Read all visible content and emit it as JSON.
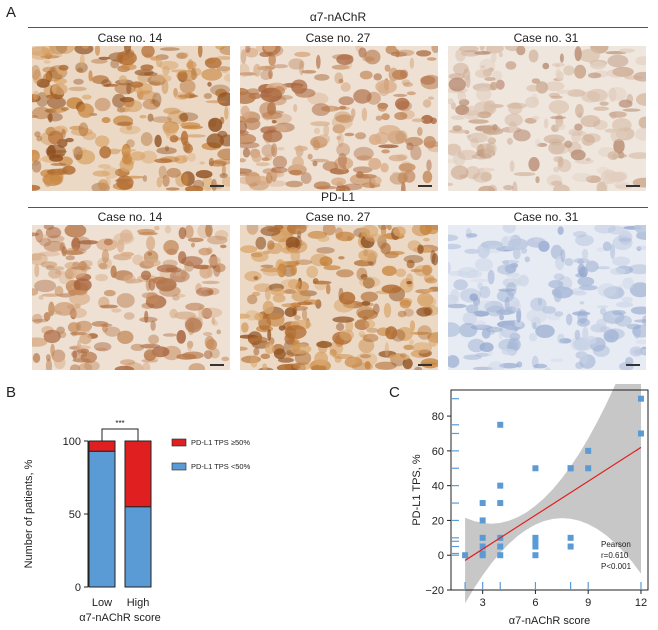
{
  "panel_a": {
    "letter": "A",
    "sections": [
      {
        "title": "α7-nAChR",
        "cases": [
          "Case no. 14",
          "Case no. 27",
          "Case no. 31"
        ]
      },
      {
        "title": "PD-L1",
        "cases": [
          "Case no. 14",
          "Case no. 27",
          "Case no. 31"
        ]
      }
    ],
    "images": [
      {
        "stain": "brown-strong"
      },
      {
        "stain": "brown-moderate"
      },
      {
        "stain": "brown-weak"
      },
      {
        "stain": "brown-moderate"
      },
      {
        "stain": "brown-strong"
      },
      {
        "stain": "blue-negative"
      }
    ],
    "colors": {
      "dab_brown": "#b06a2e",
      "hematoxylin_blue": "#aebfdc",
      "background": "#f4ece4"
    }
  },
  "panel_b": {
    "letter": "B",
    "significance": "***",
    "ylabel": "Number of patients, %",
    "xlabel": "α7-nAChR score",
    "colors": {
      "high_tps": "#e02020",
      "low_tps": "#5b9bd5"
    },
    "chart_data": {
      "type": "bar",
      "stacked": true,
      "categories": [
        "Low",
        "High"
      ],
      "series": [
        {
          "name": "PD-L1 TPS <50%",
          "values": [
            93,
            55
          ]
        },
        {
          "name": "PD-L1 TPS ≥50%",
          "values": [
            7,
            45
          ]
        }
      ],
      "ylim": [
        0,
        100
      ],
      "yticks": [
        0,
        50,
        100
      ],
      "legend": "right"
    }
  },
  "panel_c": {
    "letter": "C",
    "xlabel": "α7-nAChR score",
    "ylabel": "PD-L1 TPS, %",
    "annotation": [
      "Pearson",
      "r=0.610",
      "P<0.001"
    ],
    "colors": {
      "points": "#5b9bd5",
      "fit": "#e02020",
      "ci": "#bdbdbd"
    },
    "chart_data": {
      "type": "scatter",
      "x": [
        2,
        3,
        3,
        3,
        3,
        3,
        3,
        4,
        4,
        4,
        4,
        4,
        4,
        6,
        6,
        6,
        6,
        6,
        8,
        8,
        8,
        8,
        9,
        9,
        12,
        12
      ],
      "y": [
        0,
        0,
        5,
        10,
        20,
        30,
        1,
        75,
        40,
        30,
        10,
        5,
        0,
        50,
        10,
        5,
        0,
        8,
        50,
        10,
        5,
        50,
        50,
        60,
        90,
        70
      ],
      "fit": {
        "x": [
          2,
          12
        ],
        "y": [
          -3,
          62
        ]
      },
      "xlim": [
        1.2,
        12.4
      ],
      "ylim": [
        -20,
        95
      ],
      "xticks": [
        3,
        6,
        9,
        12
      ],
      "yticks": [
        -20,
        0,
        20,
        40,
        60,
        80
      ]
    }
  }
}
